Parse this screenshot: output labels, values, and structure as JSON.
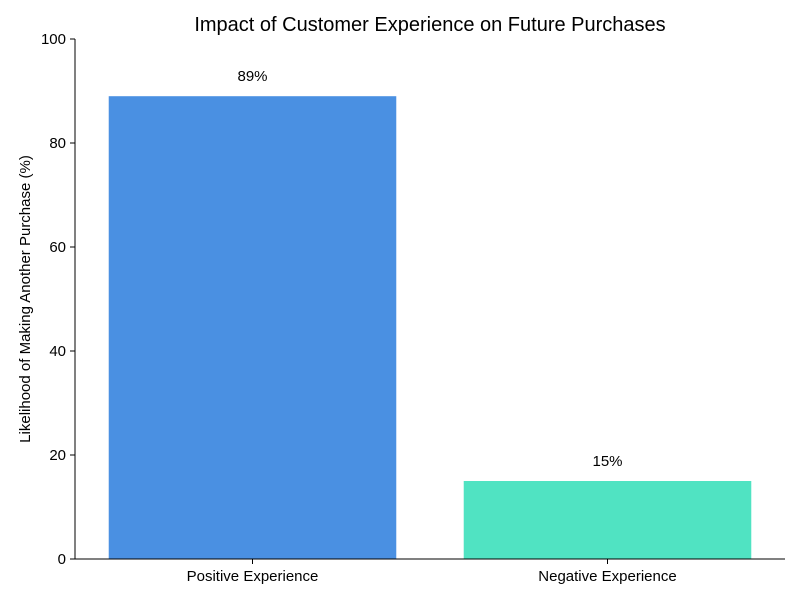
{
  "chart_data": {
    "type": "bar",
    "title": "Impact of Customer Experience on Future Purchases",
    "xlabel": "",
    "ylabel": "Likelihood of Making Another Purchase (%)",
    "categories": [
      "Positive Experience",
      "Negative Experience"
    ],
    "values": [
      89,
      15
    ],
    "value_labels": [
      "89%",
      "15%"
    ],
    "colors": [
      "#4A90E2",
      "#50E3C2"
    ],
    "ylim": [
      0,
      100
    ],
    "yticks": [
      0,
      20,
      40,
      60,
      80,
      100
    ],
    "ytick_labels": [
      "0",
      "20",
      "40",
      "60",
      "80",
      "100"
    ],
    "grid": false,
    "legend": "none"
  }
}
